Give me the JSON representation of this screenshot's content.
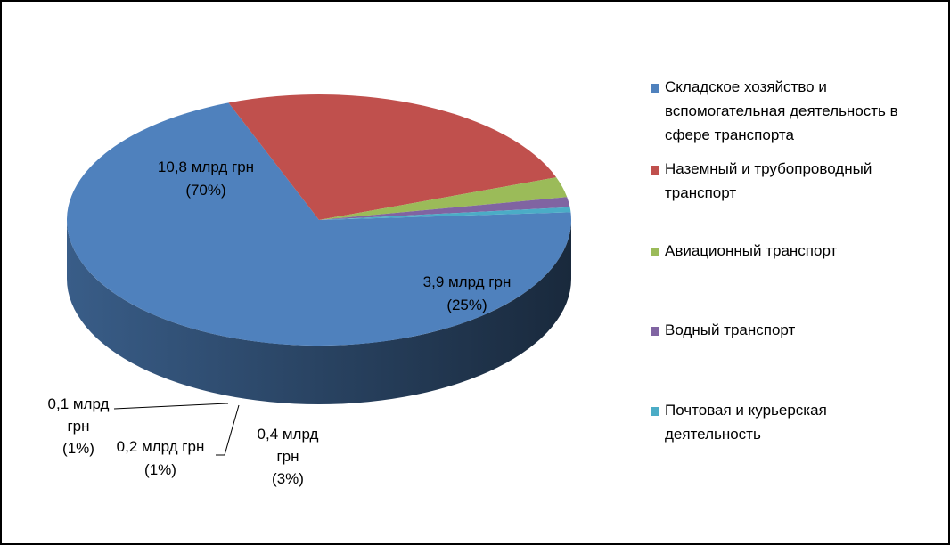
{
  "chart_data": {
    "type": "pie",
    "title": "",
    "series": [
      {
        "name": "Складское хозяйство и вспомогательная деятельность в сфере транспорта",
        "value": 10.8,
        "percent": 70,
        "label_line1": "10,8 млрд грн",
        "label_line2": "(70%)",
        "color": "#4F81BD"
      },
      {
        "name": "Наземный и трубопроводный транспорт",
        "value": 3.9,
        "percent": 25,
        "label_line1": "3,9 млрд грн",
        "label_line2": "(25%)",
        "color": "#C0504D"
      },
      {
        "name": "Авиационный транспорт",
        "value": 0.4,
        "percent": 3,
        "label_line1": "0,4 млрд",
        "label_line2": "грн",
        "label_line3": "(3%)",
        "color": "#9BBB59"
      },
      {
        "name": "Водный транспорт",
        "value": 0.2,
        "percent": 1,
        "label_line1": "0,2 млрд грн",
        "label_line2": "(1%)",
        "color": "#8064A2"
      },
      {
        "name": "Почтовая и курьерская деятельность",
        "value": 0.1,
        "percent": 1,
        "label_line1": "0,1 млрд",
        "label_line2": "грн",
        "label_line3": "(1%)",
        "color": "#4BACC6"
      }
    ],
    "legend_position": "right",
    "style": "3d-pie"
  },
  "legend": {
    "items": [
      {
        "line1": "Складское хозяйство и",
        "line2": "вспомогательная деятельность в",
        "line3": "сфере транспорта"
      },
      {
        "line1": "Наземный и трубопроводный",
        "line2": "транспорт",
        "line3": ""
      },
      {
        "line1": "Авиационный транспорт",
        "line2": "",
        "line3": ""
      },
      {
        "line1": "Водный транспорт",
        "line2": "",
        "line3": ""
      },
      {
        "line1": "Почтовая и курьерская",
        "line2": "деятельность",
        "line3": ""
      }
    ]
  }
}
